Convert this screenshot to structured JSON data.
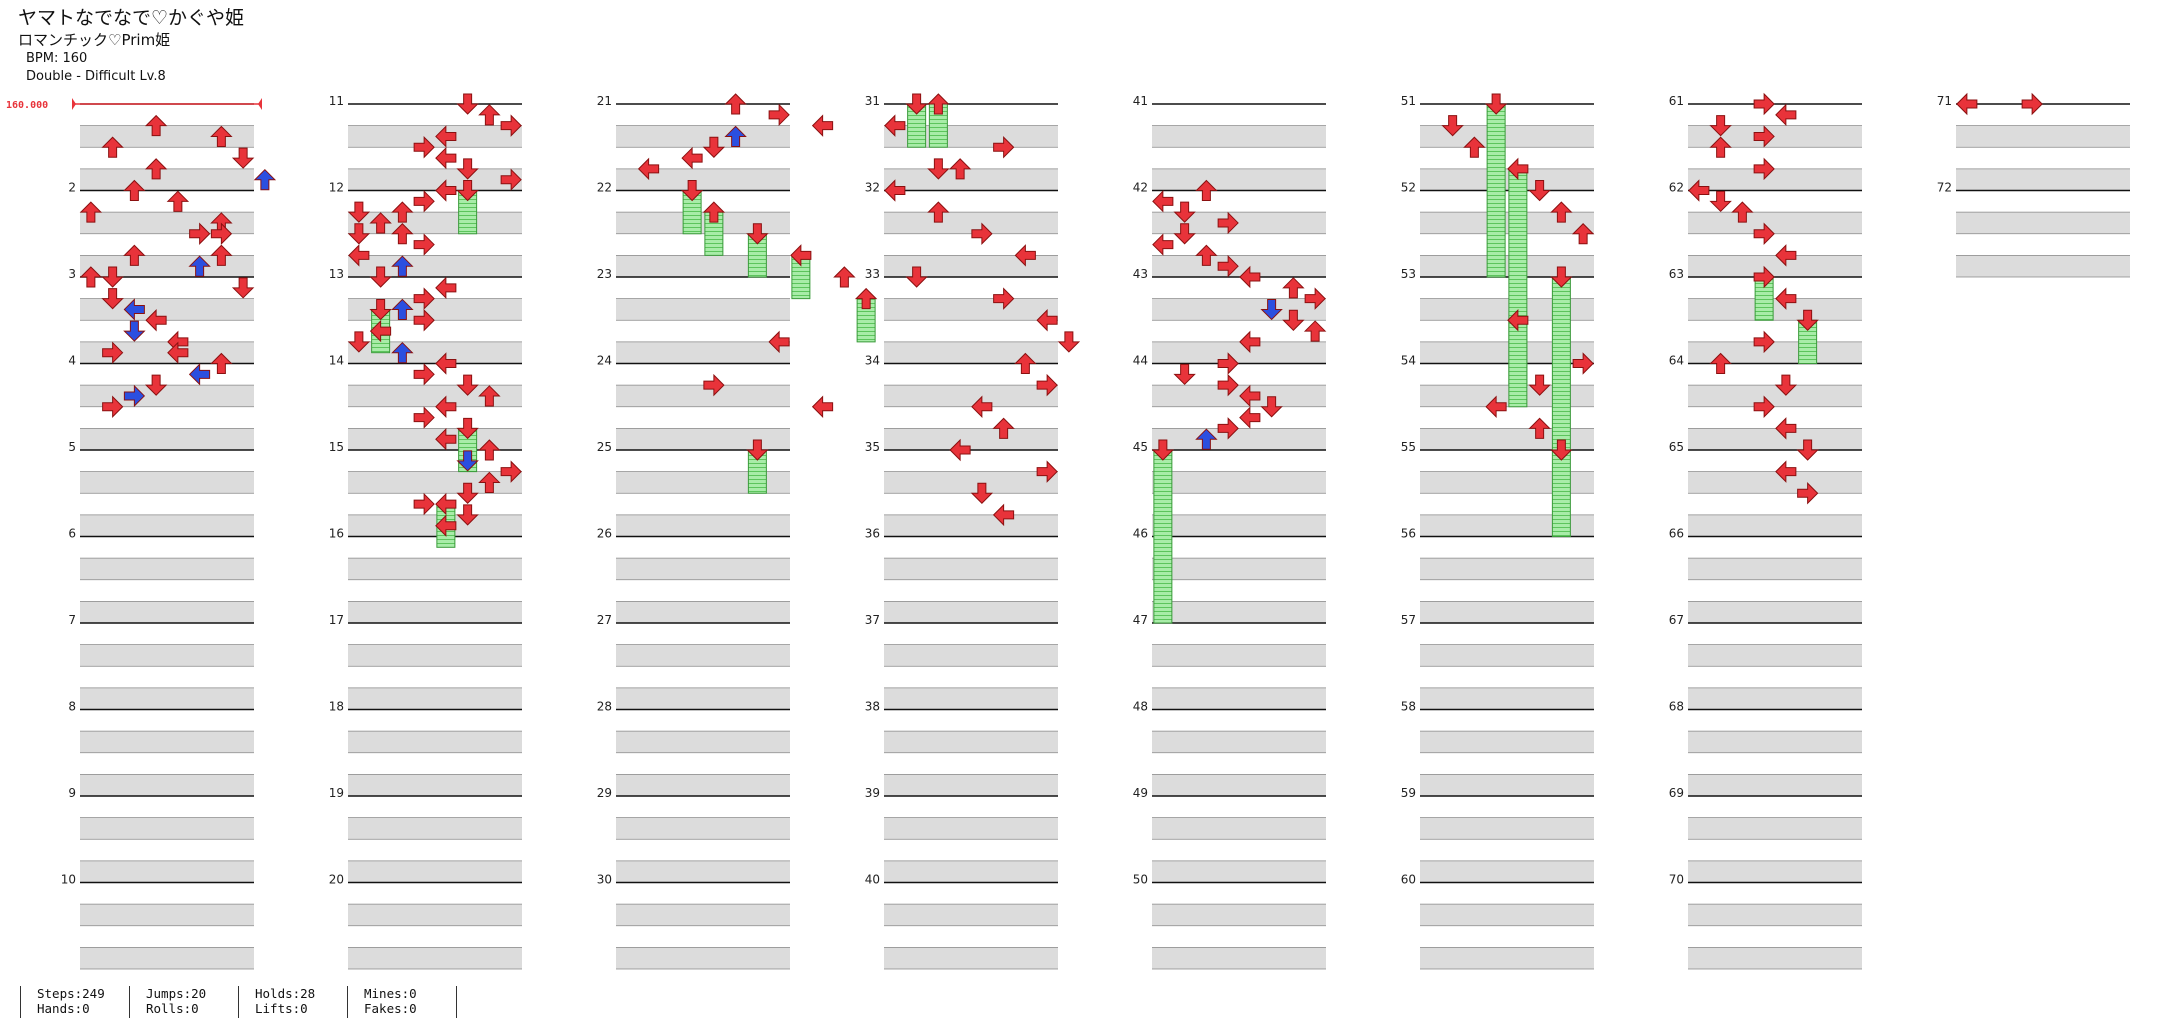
{
  "header": {
    "title": "ヤマトなでなで♡かぐや姫",
    "artist": "ロマンチック♡Prim姫",
    "bpm": "BPM: 160",
    "difficulty": "Double - Difficult  Lv.8"
  },
  "bpm_marker": "160.000",
  "measure_labels": [
    "2",
    "3",
    "4",
    "5",
    "6",
    "7",
    "8",
    "9",
    "10",
    "11",
    "12",
    "13",
    "14",
    "15",
    "16",
    "17",
    "18",
    "19",
    "20",
    "21",
    "22",
    "23",
    "24",
    "25",
    "26",
    "27",
    "28",
    "29",
    "30",
    "31",
    "32",
    "33",
    "34",
    "35",
    "36",
    "37",
    "38",
    "39",
    "40",
    "41",
    "42",
    "43",
    "44",
    "45",
    "46",
    "47",
    "48",
    "49",
    "50",
    "51",
    "52",
    "53",
    "54",
    "55",
    "56",
    "57",
    "58",
    "59",
    "60",
    "61",
    "62",
    "63",
    "64",
    "65",
    "66",
    "67",
    "68",
    "69",
    "70",
    "71",
    "72"
  ],
  "colors": {
    "quarter": "#e8333a",
    "eighth": "#2b4fe0",
    "hold": "#8fe08f",
    "bpm": "#e8333a"
  },
  "notes": {
    "0": [
      [
        [
          2,
          3,
          2,
          0.5
        ],
        [
          3,
          6,
          2,
          0.5
        ],
        [
          4,
          1,
          2,
          0.5
        ],
        [
          5,
          7,
          1,
          0.5
        ],
        [
          6,
          3,
          2,
          0.5
        ],
        [
          7,
          8,
          2,
          0.5
        ],
        [
          8,
          2,
          2,
          0.5
        ],
        [
          9,
          4,
          2,
          0.5
        ],
        [
          10,
          0,
          2,
          0.5
        ],
        [
          11,
          6,
          2,
          0.5
        ],
        [
          12,
          5,
          3,
          0.5
        ],
        [
          12,
          6,
          3,
          0.5
        ],
        [
          14,
          2,
          2,
          0.5
        ],
        [
          14,
          6,
          2,
          0.5
        ],
        [
          15,
          5,
          2,
          0.5
        ],
        [
          16,
          0,
          2,
          0.5
        ],
        [
          16,
          1,
          1,
          0.5
        ],
        [
          17,
          7,
          1,
          0.5
        ],
        [
          18,
          1,
          1,
          0.5
        ],
        [
          19,
          2,
          0,
          0.5
        ],
        [
          20,
          3,
          0,
          0.5
        ],
        [
          21,
          2,
          1,
          0.5
        ],
        [
          22,
          4,
          0,
          0.5
        ],
        [
          23,
          1,
          3,
          0.5
        ],
        [
          23,
          4,
          0,
          0.5
        ],
        [
          24,
          6,
          2,
          0.5
        ],
        [
          25,
          5,
          0,
          0.5
        ],
        [
          26,
          3,
          1,
          0.5
        ],
        [
          27,
          2,
          3,
          0.5
        ],
        [
          28,
          1,
          3,
          0.5
        ]
      ]
    ],
    "1": [
      [
        [
          0,
          5,
          1,
          0.5
        ],
        [
          1,
          6,
          2,
          0.5
        ],
        [
          2,
          7,
          3,
          0.5
        ],
        [
          3,
          4,
          0,
          0.5
        ],
        [
          4,
          3,
          3,
          0.5
        ],
        [
          5,
          4,
          0,
          0.5
        ],
        [
          6,
          5,
          1,
          0.5
        ],
        [
          7,
          7,
          3,
          0.5
        ],
        [
          8,
          5,
          1,
          1
        ],
        [
          8,
          4,
          0,
          0.5
        ],
        [
          9,
          3,
          3,
          0.5
        ],
        [
          10,
          2,
          2,
          0.5
        ],
        [
          10,
          0,
          1,
          0.5
        ],
        [
          11,
          1,
          2,
          0.5
        ],
        [
          12,
          0,
          1,
          0.5
        ],
        [
          12,
          2,
          2,
          0.5
        ],
        [
          13,
          3,
          3,
          0.5
        ],
        [
          14,
          0,
          0,
          0.5
        ],
        [
          15,
          2,
          2,
          0.5
        ],
        [
          16,
          1,
          1,
          0.5
        ],
        [
          17,
          4,
          0,
          0.5
        ],
        [
          18,
          3,
          3,
          0.5
        ],
        [
          19,
          1,
          1,
          1
        ],
        [
          19,
          2,
          2,
          0.5
        ],
        [
          20,
          3,
          3,
          0.5
        ],
        [
          21,
          1,
          0,
          0.5
        ],
        [
          22,
          0,
          1,
          0.5
        ],
        [
          23,
          2,
          2,
          0.5
        ],
        [
          24,
          4,
          0,
          0.5
        ],
        [
          25,
          3,
          3,
          0.5
        ],
        [
          26,
          5,
          1,
          0.5
        ],
        [
          27,
          6,
          2,
          0.5
        ],
        [
          28,
          4,
          0,
          0.5
        ],
        [
          29,
          3,
          3,
          0.5
        ],
        [
          30,
          5,
          1,
          1
        ],
        [
          31,
          4,
          0,
          0.5
        ],
        [
          32,
          6,
          2,
          0.5
        ],
        [
          33,
          5,
          1,
          0.5
        ],
        [
          34,
          7,
          3,
          0.5
        ],
        [
          35,
          6,
          2,
          0.5
        ],
        [
          36,
          5,
          1,
          0.5
        ],
        [
          37,
          4,
          0,
          1
        ],
        [
          37,
          3,
          3,
          0.5
        ],
        [
          38,
          5,
          1,
          0.5
        ],
        [
          39,
          4,
          0,
          0.5
        ]
      ]
    ]
  },
  "stats": {
    "col1": [
      "Steps:249",
      "Hands:0"
    ],
    "col2": [
      "Jumps:20",
      "Rolls:0"
    ],
    "col3": [
      "Holds:28",
      "Lifts:0"
    ],
    "col4": [
      "Mines:0",
      "Fakes:0"
    ]
  }
}
